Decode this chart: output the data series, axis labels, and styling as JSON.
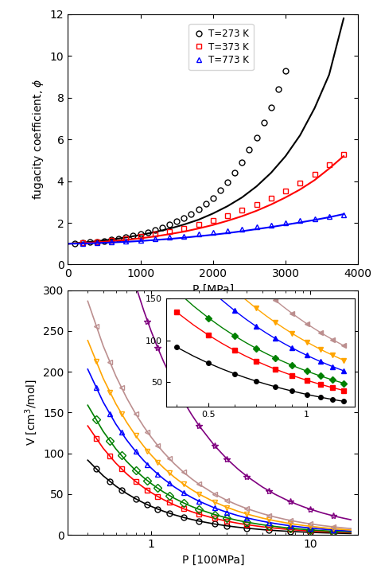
{
  "top": {
    "xlabel": "P [MPa]",
    "ylabel": "fugacity coefficient, $\\phi$",
    "xlim": [
      0,
      4000
    ],
    "ylim": [
      0,
      12
    ],
    "yticks": [
      0,
      2,
      4,
      6,
      8,
      10,
      12
    ],
    "xticks": [
      0,
      1000,
      2000,
      3000,
      4000
    ],
    "series": [
      {
        "label": "T=273 K",
        "color": "black",
        "marker": "o",
        "line_P": [
          0,
          200,
          400,
          600,
          800,
          1000,
          1200,
          1400,
          1600,
          1800,
          2000,
          2200,
          2400,
          2600,
          2800,
          3000,
          3200,
          3400,
          3600,
          3800
        ],
        "line_V": [
          1.0,
          1.05,
          1.12,
          1.2,
          1.3,
          1.42,
          1.56,
          1.72,
          1.92,
          2.15,
          2.45,
          2.8,
          3.22,
          3.75,
          4.4,
          5.2,
          6.2,
          7.5,
          9.1,
          11.8
        ],
        "scat_P": [
          100,
          200,
          300,
          400,
          500,
          600,
          700,
          800,
          900,
          1000,
          1100,
          1200,
          1300,
          1400,
          1500,
          1600,
          1700,
          1800,
          1900,
          2000,
          2100,
          2200,
          2300,
          2400,
          2500,
          2600,
          2700,
          2800,
          2900,
          3000
        ],
        "scat_V": [
          1.02,
          1.04,
          1.07,
          1.1,
          1.14,
          1.19,
          1.25,
          1.31,
          1.38,
          1.46,
          1.56,
          1.66,
          1.78,
          1.91,
          2.06,
          2.24,
          2.43,
          2.65,
          2.9,
          3.2,
          3.55,
          3.95,
          4.4,
          4.9,
          5.5,
          6.1,
          6.8,
          7.55,
          8.4,
          9.3
        ]
      },
      {
        "label": "T=373 K",
        "color": "red",
        "marker": "s",
        "line_P": [
          0,
          200,
          400,
          600,
          800,
          1000,
          1200,
          1400,
          1600,
          1800,
          2000,
          2200,
          2400,
          2600,
          2800,
          3000,
          3200,
          3400,
          3600,
          3800
        ],
        "line_V": [
          1.0,
          1.03,
          1.07,
          1.12,
          1.18,
          1.26,
          1.35,
          1.46,
          1.58,
          1.73,
          1.9,
          2.1,
          2.32,
          2.58,
          2.88,
          3.22,
          3.6,
          4.05,
          4.6,
          5.2
        ],
        "scat_P": [
          200,
          400,
          600,
          800,
          1000,
          1200,
          1400,
          1600,
          1800,
          2000,
          2200,
          2400,
          2600,
          2800,
          3000,
          3200,
          3400,
          3600,
          3800
        ],
        "scat_V": [
          1.04,
          1.1,
          1.17,
          1.25,
          1.35,
          1.47,
          1.6,
          1.75,
          1.92,
          2.12,
          2.35,
          2.6,
          2.88,
          3.18,
          3.52,
          3.9,
          4.32,
          4.8,
          5.3
        ]
      },
      {
        "label": "T=773 K",
        "color": "blue",
        "marker": "^",
        "line_P": [
          0,
          200,
          400,
          600,
          800,
          1000,
          1200,
          1400,
          1600,
          1800,
          2000,
          2200,
          2400,
          2600,
          2800,
          3000,
          3200,
          3400,
          3600,
          3800
        ],
        "line_V": [
          1.0,
          1.01,
          1.03,
          1.06,
          1.09,
          1.13,
          1.18,
          1.23,
          1.29,
          1.36,
          1.43,
          1.51,
          1.6,
          1.7,
          1.8,
          1.91,
          2.02,
          2.14,
          2.27,
          2.42
        ],
        "scat_P": [
          200,
          400,
          600,
          800,
          1000,
          1200,
          1400,
          1600,
          1800,
          2000,
          2200,
          2400,
          2600,
          2800,
          3000,
          3200,
          3400,
          3600,
          3800
        ],
        "scat_V": [
          1.02,
          1.05,
          1.09,
          1.13,
          1.18,
          1.24,
          1.3,
          1.37,
          1.45,
          1.53,
          1.62,
          1.71,
          1.8,
          1.9,
          2.0,
          2.1,
          2.2,
          2.3,
          2.4
        ]
      }
    ]
  },
  "bottom": {
    "xlabel": "P [100MPa]",
    "ylabel": "V [cm$^3$/mol]",
    "xlim": [
      0.3,
      20
    ],
    "ylim": [
      0,
      300
    ],
    "yticks": [
      0,
      50,
      100,
      150,
      200,
      250,
      300
    ],
    "colors": [
      "black",
      "red",
      "green",
      "blue",
      "orange",
      "#bc8f8f",
      "purple"
    ],
    "markers": [
      "o",
      "s",
      "D",
      "^",
      "v",
      "<",
      "*"
    ],
    "A_vals": [
      35,
      52,
      63,
      82,
      98,
      120,
      250
    ],
    "n_vals": [
      1.05,
      1.03,
      1.01,
      0.99,
      0.97,
      0.95,
      0.9
    ],
    "p_line": [
      0.4,
      0.5,
      0.6,
      0.7,
      0.8,
      0.9,
      1.0,
      1.1,
      1.2,
      1.4,
      1.6,
      1.8,
      2.0,
      2.5,
      3.0,
      3.5,
      4.0,
      5.0,
      6.0,
      7.0,
      8.0,
      9.0,
      10.0,
      12.0,
      14.0,
      16.0,
      18.0
    ],
    "p_scat": [
      0.45,
      0.55,
      0.65,
      0.8,
      0.95,
      1.1,
      1.3,
      1.6,
      2.0,
      2.5,
      3.0,
      4.0,
      5.5,
      7.5,
      10.0,
      14.0
    ],
    "inset": {
      "xlim": [
        0.37,
        1.4
      ],
      "ylim": [
        20,
        150
      ],
      "yticks": [
        50,
        100,
        150
      ],
      "xticks": [
        0.5,
        1.0
      ],
      "xtick_labels": [
        "0.5",
        "1"
      ],
      "p_line": [
        0.4,
        0.45,
        0.5,
        0.55,
        0.6,
        0.65,
        0.7,
        0.75,
        0.8,
        0.85,
        0.9,
        0.95,
        1.0,
        1.05,
        1.1,
        1.15,
        1.2,
        1.25,
        1.3
      ],
      "p_scat": [
        0.4,
        0.5,
        0.6,
        0.7,
        0.8,
        0.9,
        1.0,
        1.1,
        1.2,
        1.3
      ],
      "colors": [
        "black",
        "red",
        "green",
        "blue",
        "orange",
        "#bc8f8f",
        "purple"
      ],
      "markers_filled": [
        "o",
        "s",
        "D",
        "^",
        "v",
        "<",
        "*"
      ]
    }
  }
}
